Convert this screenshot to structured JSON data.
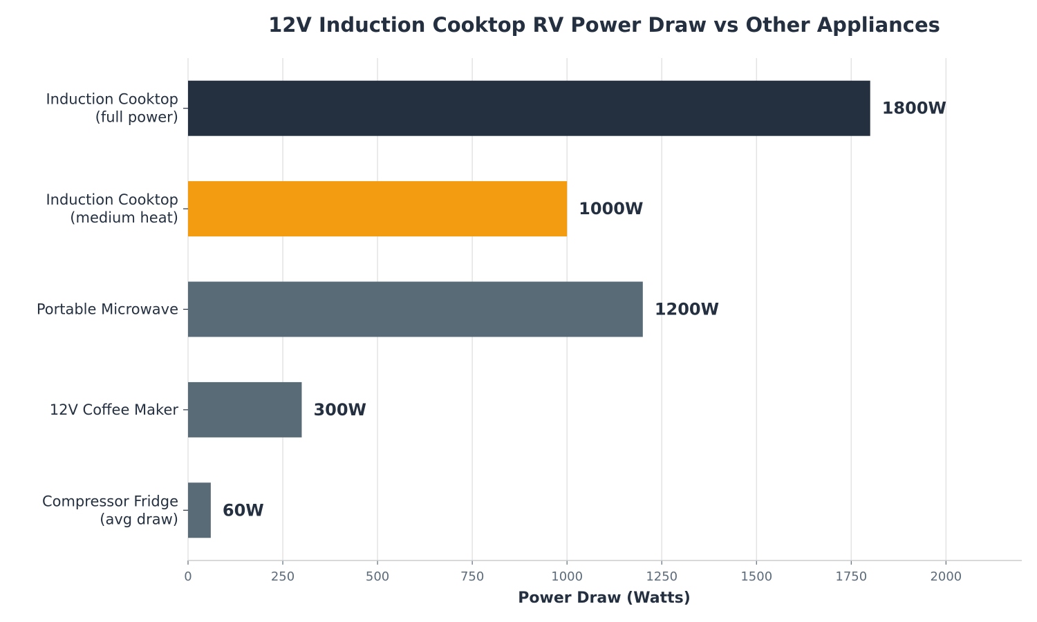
{
  "chart_data": {
    "type": "bar",
    "orientation": "horizontal",
    "title": "12V Induction Cooktop RV Power Draw vs Other Appliances",
    "xlabel": "Power Draw (Watts)",
    "ylabel": "",
    "xlim": [
      0,
      2200
    ],
    "xticks": [
      0,
      250,
      500,
      750,
      1000,
      1250,
      1500,
      1750,
      2000
    ],
    "grid": "vertical",
    "value_suffix": "W",
    "categories": [
      [
        "Induction Cooktop",
        "(full power)"
      ],
      [
        "Induction Cooktop",
        "(medium heat)"
      ],
      [
        "Portable Microwave"
      ],
      [
        "12V Coffee Maker"
      ],
      [
        "Compressor Fridge",
        "(avg draw)"
      ]
    ],
    "values": [
      1800,
      1000,
      1200,
      300,
      60
    ],
    "colors": [
      "#243040",
      "#f39c12",
      "#5a6b78",
      "#5a6b78",
      "#5a6b78"
    ]
  }
}
